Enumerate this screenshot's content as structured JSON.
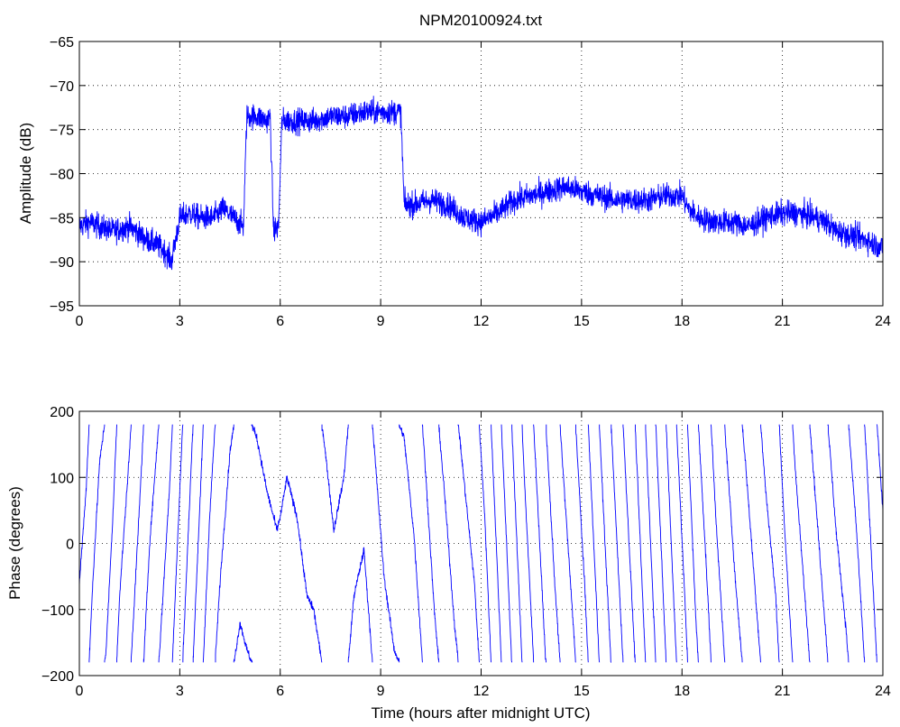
{
  "chart_data": [
    {
      "type": "line",
      "title": "NPM20100924.txt",
      "xlabel": "",
      "ylabel": "Amplitude (dB)",
      "xlim": [
        0,
        24
      ],
      "ylim": [
        -95,
        -65
      ],
      "xticks": [
        0,
        3,
        6,
        9,
        12,
        15,
        18,
        21,
        24
      ],
      "yticks": [
        -95,
        -90,
        -85,
        -80,
        -75,
        -70,
        -65
      ],
      "xtick_labels": [
        "0",
        "3",
        "6",
        "9",
        "12",
        "15",
        "18",
        "21",
        "24"
      ],
      "ytick_labels": [
        "−95",
        "−90",
        "−85",
        "−80",
        "−75",
        "−70",
        "−65"
      ],
      "grid": true,
      "line_color": "#0000ff",
      "noise": 1.4,
      "series": [
        {
          "x": [
            0,
            0.3,
            0.6,
            1.0,
            1.5,
            2.0,
            2.3,
            2.6,
            2.75,
            2.9,
            3.0,
            3.3,
            3.6,
            4.0,
            4.3,
            4.6,
            4.9,
            4.95,
            5.0,
            5.3,
            5.6,
            5.7,
            5.75,
            5.8,
            5.95,
            6.0,
            6.05,
            6.5,
            7.0,
            7.5,
            8.0,
            8.5,
            9.0,
            9.5,
            9.6,
            9.65,
            9.7,
            10.0,
            10.5,
            11.0,
            11.5,
            12.0,
            12.5,
            13.0,
            13.5,
            14.0,
            14.5,
            15.0,
            15.5,
            16.0,
            16.5,
            17.0,
            17.5,
            18.0,
            18.2,
            18.5,
            19.0,
            19.5,
            20.0,
            20.5,
            21.0,
            21.5,
            22.0,
            22.3,
            22.6,
            23.0,
            23.5,
            24.0
          ],
          "y": [
            -86,
            -85.5,
            -86,
            -86.5,
            -86,
            -87.5,
            -88,
            -89,
            -90,
            -87,
            -85,
            -84.5,
            -85,
            -85,
            -84,
            -85,
            -86,
            -80,
            -73.5,
            -73.5,
            -74,
            -73.5,
            -80,
            -86.5,
            -86,
            -80,
            -74,
            -74,
            -74,
            -73.5,
            -73.5,
            -73,
            -73,
            -73,
            -73,
            -78,
            -83.5,
            -83.5,
            -83,
            -83.5,
            -85,
            -85.5,
            -84.5,
            -83,
            -82.5,
            -82,
            -81.5,
            -82,
            -82.5,
            -83,
            -83,
            -83,
            -82.5,
            -82.5,
            -84,
            -85,
            -85.5,
            -85.5,
            -86,
            -85,
            -84.5,
            -84.5,
            -85,
            -85.5,
            -86.5,
            -87,
            -87.5,
            -88.5
          ]
        }
      ]
    },
    {
      "type": "line",
      "title": "",
      "xlabel": "Time (hours after midnight UTC)",
      "ylabel": "Phase (degrees)",
      "xlim": [
        0,
        24
      ],
      "ylim": [
        -200,
        200
      ],
      "xticks": [
        0,
        3,
        6,
        9,
        12,
        15,
        18,
        21,
        24
      ],
      "yticks": [
        -200,
        -100,
        0,
        100,
        200
      ],
      "xtick_labels": [
        "0",
        "3",
        "6",
        "9",
        "12",
        "15",
        "18",
        "21",
        "24"
      ],
      "ytick_labels": [
        "−200",
        "−100",
        "0",
        "100",
        "200"
      ],
      "grid": true,
      "line_color": "#0000ff",
      "wrap": [
        -180,
        180
      ],
      "series": [
        {
          "x": [
            0,
            0.2,
            0.4,
            0.6,
            0.8,
            1.0,
            1.2,
            1.5,
            1.8,
            2.1,
            2.4,
            2.7,
            3.0,
            3.3,
            3.6,
            3.9,
            4.2,
            4.5,
            4.8,
            5.0,
            5.3,
            5.6,
            5.9,
            6.0,
            6.2,
            6.5,
            6.8,
            7.0,
            7.3,
            7.6,
            7.9,
            8.2,
            8.5,
            8.8,
            9.1,
            9.4,
            9.7,
            10.0,
            10.3,
            10.6,
            10.9,
            11.2,
            11.5,
            11.8,
            12.1,
            12.4,
            12.7,
            13.0,
            13.3,
            13.6,
            13.9,
            14.2,
            14.5,
            14.8,
            15.1,
            15.4,
            15.7,
            16.0,
            16.3,
            16.6,
            16.9,
            17.2,
            17.5,
            17.8,
            18.1,
            18.4,
            18.7,
            19.0,
            19.3,
            19.6,
            19.9,
            20.2,
            20.5,
            20.8,
            21.1,
            21.4,
            21.7,
            22.0,
            22.3,
            22.6,
            22.9,
            23.2,
            23.5,
            23.8,
            24.0
          ],
          "y": [
            -60,
            80,
            300,
            480,
            560,
            760,
            1000,
            1220,
            1500,
            1800,
            2000,
            2250,
            2600,
            2950,
            3300,
            3650,
            3900,
            4100,
            4200,
            4160,
            4120,
            4040,
            3980,
            4000,
            4060,
            4000,
            3880,
            3860,
            3760,
            3620,
            3700,
            3880,
            3950,
            3750,
            3550,
            3440,
            3400,
            3250,
            3020,
            2780,
            2600,
            2400,
            2250,
            2100,
            1850,
            1500,
            1150,
            800,
            450,
            150,
            -150,
            -420,
            -650,
            -880,
            -1150,
            -1480,
            -1800,
            -2100,
            -2400,
            -2700,
            -3050,
            -3400,
            -3750,
            -4100,
            -4420,
            -4780,
            -5050,
            -5350,
            -5600,
            -5820,
            -6000,
            -6200,
            -6400,
            -6560,
            -6850,
            -7100,
            -7300,
            -7500,
            -7700,
            -7900,
            -8050,
            -8250,
            -8500,
            -8800,
            -8950
          ]
        }
      ]
    }
  ]
}
